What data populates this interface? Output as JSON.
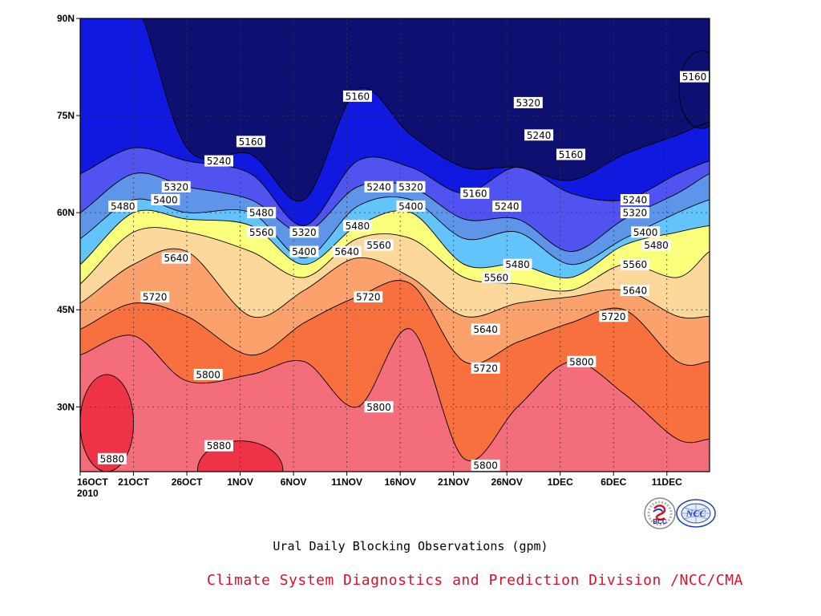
{
  "caption": "Ural Daily Blocking Observations (gpm)",
  "credit": "Climate System Diagnostics and Prediction Division /NCC/CMA",
  "logos": [
    {
      "name": "bcc-logo",
      "text": "BCC"
    },
    {
      "name": "ncc-logo",
      "text": "NCC"
    }
  ],
  "chart_data": {
    "type": "contour",
    "title": "Ural Daily Blocking Observations (gpm)",
    "x_ticks": [
      "16OCT",
      "21OCT",
      "26OCT",
      "1NOV",
      "6NOV",
      "11NOV",
      "16NOV",
      "21NOV",
      "26NOV",
      "1DEC",
      "6DEC",
      "11DEC"
    ],
    "x_year_label": "2010",
    "xlim_days": [
      0,
      59
    ],
    "y_ticks": [
      "90N",
      "75N",
      "60N",
      "45N",
      "30N"
    ],
    "ylim": [
      20,
      90
    ],
    "y_tick_values": [
      90,
      75,
      60,
      45,
      30
    ],
    "grid": true,
    "contour_levels": [
      5160,
      5240,
      5320,
      5400,
      5480,
      5560,
      5640,
      5720,
      5800,
      5880
    ],
    "level_colors": [
      "#0d1070",
      "#1019e0",
      "#5053f0",
      "#5e95e9",
      "#63c3fb",
      "#faff7c",
      "#fcd89a",
      "#fba16c",
      "#f9703f",
      "#f46d7b",
      "#ef3346"
    ],
    "days": [
      0,
      5,
      10,
      16,
      21,
      26,
      31,
      36,
      41,
      46,
      51,
      56,
      59
    ],
    "isolines_lat": {
      "5160": [
        null,
        null,
        70,
        69,
        62,
        79,
        72,
        67,
        67,
        65,
        69,
        72,
        74
      ],
      "5240": [
        66,
        70,
        68,
        66,
        58,
        68,
        67,
        63,
        67,
        63,
        62,
        66,
        68
      ],
      "5320": [
        60,
        66,
        64,
        62,
        57,
        64,
        64,
        59,
        59,
        54,
        59,
        63,
        66
      ],
      "5400": [
        56,
        62,
        60,
        60,
        53,
        61,
        62,
        56,
        57,
        52,
        56,
        60,
        62
      ],
      "5480": [
        52,
        60,
        59,
        58,
        52,
        58,
        60,
        52,
        52,
        50,
        55,
        57,
        58
      ],
      "5560": [
        49,
        57,
        57,
        54,
        50,
        56,
        56,
        50,
        49,
        48,
        52,
        50,
        54
      ],
      "5640": [
        46,
        52,
        54,
        44,
        48,
        53,
        50,
        44,
        46,
        47,
        48,
        44,
        44
      ],
      "5720": [
        42,
        46,
        44,
        38,
        43,
        47,
        49,
        37,
        40,
        43,
        45,
        37,
        37
      ],
      "5800": [
        38,
        41,
        34,
        35,
        37,
        30,
        42,
        22,
        30,
        37,
        32,
        25,
        25
      ]
    },
    "annotations": [
      {
        "label": "5160",
        "day": 26,
        "lat": 78
      },
      {
        "label": "5160",
        "day": 16,
        "lat": 71
      },
      {
        "label": "5160",
        "day": 46,
        "lat": 69
      },
      {
        "label": "5160",
        "day": 58,
        "lat": 81
      },
      {
        "label": "5160",
        "day": 37,
        "lat": 63
      },
      {
        "label": "5240",
        "day": 13,
        "lat": 68
      },
      {
        "label": "5240",
        "day": 28,
        "lat": 64
      },
      {
        "label": "5240",
        "day": 43,
        "lat": 72
      },
      {
        "label": "5240",
        "day": 40,
        "lat": 61
      },
      {
        "label": "5240",
        "day": 52,
        "lat": 62
      },
      {
        "label": "5320",
        "day": 42,
        "lat": 77
      },
      {
        "label": "5320",
        "day": 9,
        "lat": 64
      },
      {
        "label": "5320",
        "day": 31,
        "lat": 64
      },
      {
        "label": "5320",
        "day": 21,
        "lat": 57
      },
      {
        "label": "5320",
        "day": 52,
        "lat": 60
      },
      {
        "label": "5400",
        "day": 8,
        "lat": 62
      },
      {
        "label": "5400",
        "day": 31,
        "lat": 61
      },
      {
        "label": "5400",
        "day": 21,
        "lat": 54
      },
      {
        "label": "5400",
        "day": 53,
        "lat": 57
      },
      {
        "label": "5480",
        "day": 4,
        "lat": 61
      },
      {
        "label": "5480",
        "day": 17,
        "lat": 60
      },
      {
        "label": "5480",
        "day": 26,
        "lat": 58
      },
      {
        "label": "5480",
        "day": 41,
        "lat": 52
      },
      {
        "label": "5480",
        "day": 54,
        "lat": 55
      },
      {
        "label": "5560",
        "day": 17,
        "lat": 57
      },
      {
        "label": "5560",
        "day": 28,
        "lat": 55
      },
      {
        "label": "5560",
        "day": 39,
        "lat": 50
      },
      {
        "label": "5560",
        "day": 52,
        "lat": 52
      },
      {
        "label": "5640",
        "day": 9,
        "lat": 53
      },
      {
        "label": "5640",
        "day": 25,
        "lat": 54
      },
      {
        "label": "5640",
        "day": 38,
        "lat": 42
      },
      {
        "label": "5640",
        "day": 52,
        "lat": 48
      },
      {
        "label": "5720",
        "day": 7,
        "lat": 47
      },
      {
        "label": "5720",
        "day": 27,
        "lat": 47
      },
      {
        "label": "5720",
        "day": 38,
        "lat": 36
      },
      {
        "label": "5720",
        "day": 50,
        "lat": 44
      },
      {
        "label": "5800",
        "day": 12,
        "lat": 35
      },
      {
        "label": "5800",
        "day": 28,
        "lat": 30
      },
      {
        "label": "5800",
        "day": 38,
        "lat": 21
      },
      {
        "label": "5800",
        "day": 47,
        "lat": 37
      },
      {
        "label": "5880",
        "day": 3,
        "lat": 22
      },
      {
        "label": "5880",
        "day": 13,
        "lat": 24
      }
    ],
    "high_centers": [
      {
        "level": 5880,
        "day_range": [
          0,
          5
        ],
        "lat_range": [
          20,
          35
        ]
      },
      {
        "level": 5880,
        "day_range": [
          11,
          19
        ],
        "lat_range": [
          20,
          25
        ]
      }
    ],
    "low_centers": [
      {
        "level": 5160,
        "day_range": [
          56,
          59
        ],
        "lat_range": [
          73,
          85
        ]
      }
    ]
  }
}
